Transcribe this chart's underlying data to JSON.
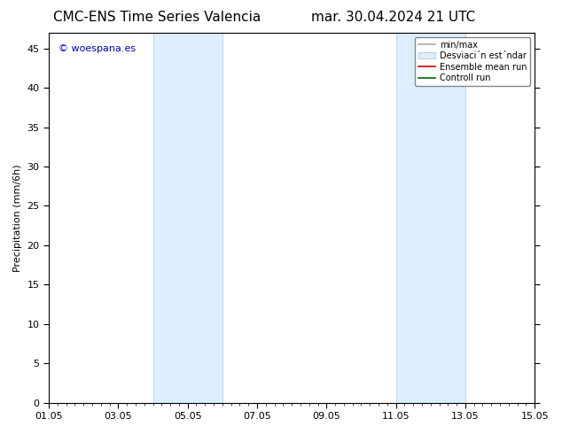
{
  "title_left": "CMC-ENS Time Series Valencia",
  "title_right": "mar. 30.04.2024 21 UTC",
  "ylabel": "Precipitation (mm/6h)",
  "xlim": [
    0,
    14
  ],
  "ylim": [
    0,
    47
  ],
  "yticks": [
    0,
    5,
    10,
    15,
    20,
    25,
    30,
    35,
    40,
    45
  ],
  "xtick_labels": [
    "01.05",
    "03.05",
    "05.05",
    "07.05",
    "09.05",
    "11.05",
    "13.05",
    "15.05"
  ],
  "xtick_positions": [
    0,
    2,
    4,
    6,
    8,
    10,
    12,
    14
  ],
  "shaded_regions": [
    {
      "start": 3.0,
      "end": 5.0
    },
    {
      "start": 10.0,
      "end": 12.0
    }
  ],
  "shaded_color": "#ddeeff",
  "shaded_edge_color": "#c0d8ee",
  "background_color": "#ffffff",
  "watermark_text": "© woespana.es",
  "watermark_color": "#0000cc",
  "legend_entries": [
    {
      "label": "min/max",
      "color": "#aaaaaa",
      "lw": 1.2
    },
    {
      "label": "Desviaci´n est´ndar",
      "color": "#ddeeff",
      "lw": 8
    },
    {
      "label": "Ensemble mean run",
      "color": "#cc0000",
      "lw": 1.2
    },
    {
      "label": "Controll run",
      "color": "#006600",
      "lw": 1.2
    }
  ],
  "title_fontsize": 11,
  "ylabel_fontsize": 8,
  "tick_fontsize": 8,
  "watermark_fontsize": 8,
  "legend_fontsize": 7
}
